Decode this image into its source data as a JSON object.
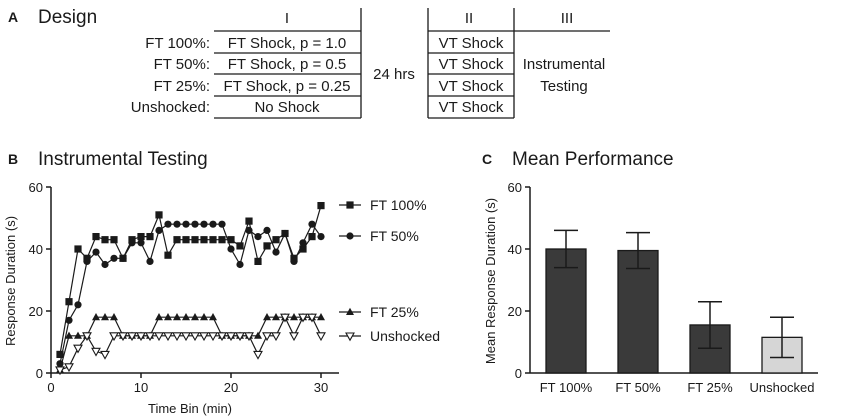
{
  "panelA": {
    "letter": "A",
    "title": "Design",
    "phase_headers": [
      "I",
      "II",
      "III"
    ],
    "rows": [
      {
        "label": "FT 100%:",
        "phase1": "FT Shock, p = 1.0",
        "phase2": "VT Shock"
      },
      {
        "label": "FT 50%:",
        "phase1": "FT Shock, p = 0.5",
        "phase2": "VT Shock"
      },
      {
        "label": "FT 25%:",
        "phase1": "FT Shock, p = 0.25",
        "phase2": "VT Shock"
      },
      {
        "label": "Unshocked:",
        "phase1": "No Shock",
        "phase2": "VT Shock"
      }
    ],
    "delay": "24 hrs",
    "phase3_line1": "Instrumental",
    "phase3_line2": "Testing"
  },
  "chart_data": [
    {
      "type": "line",
      "letter": "B",
      "title": "Instrumental Testing",
      "xlabel": "Time Bin (min)",
      "ylabel": "Response Duration (s)",
      "xlim": [
        0,
        32
      ],
      "ylim": [
        0,
        60
      ],
      "xticks": [
        0,
        10,
        20,
        30
      ],
      "yticks": [
        0,
        20,
        40,
        60
      ],
      "x": [
        1,
        2,
        3,
        4,
        5,
        6,
        7,
        8,
        9,
        10,
        11,
        12,
        13,
        14,
        15,
        16,
        17,
        18,
        19,
        20,
        21,
        22,
        23,
        24,
        25,
        26,
        27,
        28,
        29,
        30
      ],
      "series": [
        {
          "name": "FT 100%",
          "marker": "square",
          "values": [
            6,
            23,
            40,
            37,
            44,
            43,
            43,
            37,
            43,
            44,
            44,
            51,
            38,
            43,
            43,
            43,
            43,
            43,
            43,
            43,
            41,
            49,
            36,
            41,
            43,
            45,
            37,
            40,
            44,
            54
          ]
        },
        {
          "name": "FT 50%",
          "marker": "circle",
          "values": [
            3,
            17,
            22,
            36,
            39,
            35,
            37,
            37,
            42,
            42,
            36,
            46,
            48,
            48,
            48,
            48,
            48,
            48,
            48,
            40,
            35,
            46,
            44,
            46,
            39,
            45,
            36,
            42,
            48,
            44
          ]
        },
        {
          "name": "FT 25%",
          "marker": "triangle-up",
          "values": [
            1,
            12,
            12,
            12,
            18,
            18,
            18,
            12,
            12,
            12,
            12,
            18,
            18,
            18,
            18,
            18,
            18,
            18,
            12,
            12,
            12,
            12,
            12,
            18,
            18,
            18,
            18,
            18,
            18,
            18
          ]
        },
        {
          "name": "Unshocked",
          "marker": "triangle-down",
          "values": [
            1,
            2,
            8,
            12,
            7,
            6,
            12,
            12,
            12,
            12,
            12,
            12,
            12,
            12,
            12,
            12,
            12,
            12,
            12,
            12,
            12,
            12,
            6,
            12,
            12,
            18,
            12,
            18,
            18,
            12
          ]
        }
      ]
    },
    {
      "type": "bar",
      "letter": "C",
      "title": "Mean Performance",
      "xlabel": "",
      "ylabel": "Mean Response Duration (s)",
      "ylim": [
        0,
        60
      ],
      "yticks": [
        0,
        20,
        40,
        60
      ],
      "categories": [
        "FT 100%",
        "FT 50%",
        "FT 25%",
        "Unshocked"
      ],
      "values": [
        40,
        39.5,
        15.5,
        11.5
      ],
      "errors": [
        6,
        5.8,
        7.5,
        6.5
      ],
      "colors": [
        "#3a3a3a",
        "#3a3a3a",
        "#3a3a3a",
        "#d6d6d6"
      ]
    }
  ]
}
